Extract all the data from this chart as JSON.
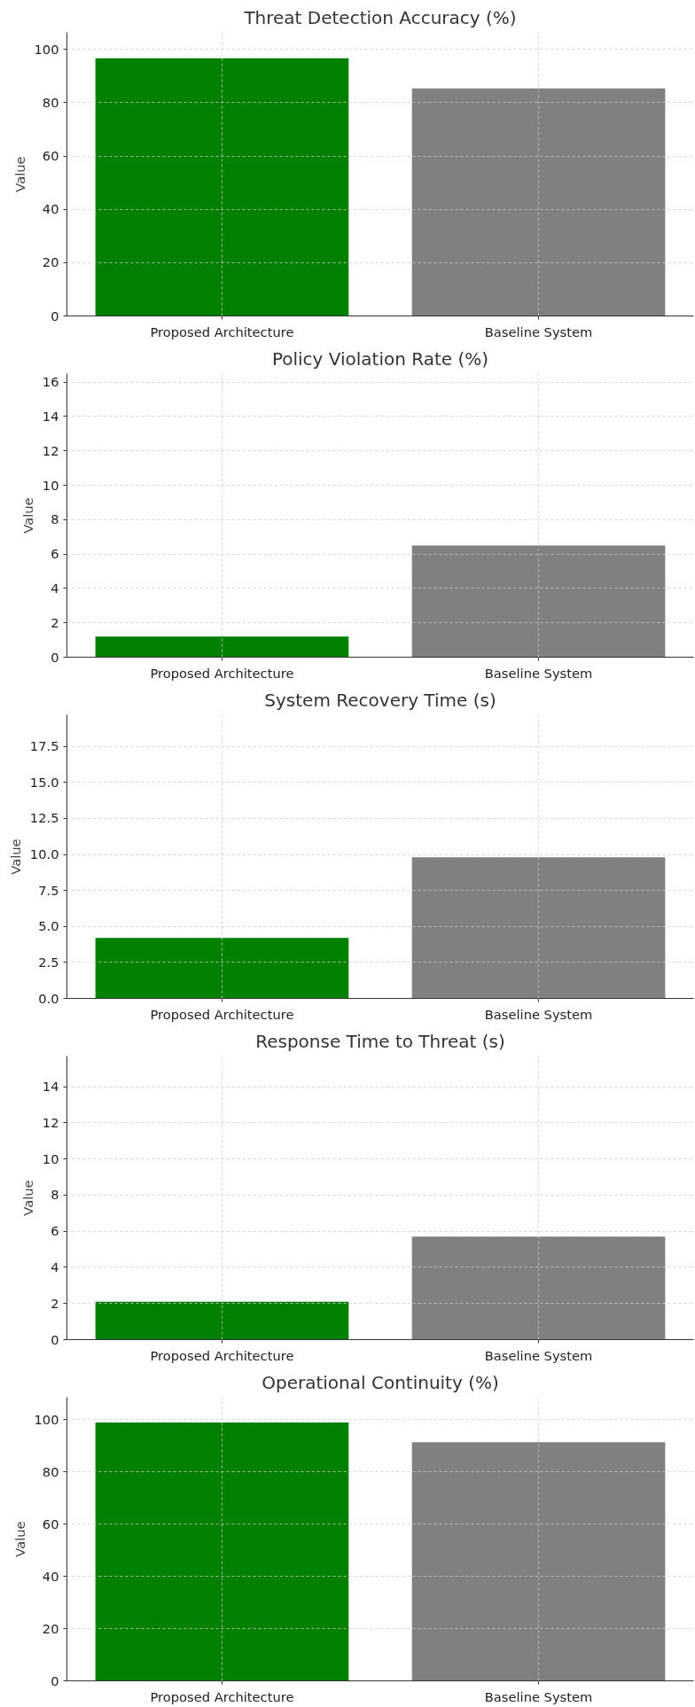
{
  "chart_data": [
    {
      "type": "bar",
      "title": "Threat Detection Accuracy (%)",
      "ylabel": "Value",
      "categories": [
        "Proposed Architecture",
        "Baseline System"
      ],
      "values": [
        96.7,
        85.4
      ],
      "colors": [
        "#008000",
        "#808080"
      ],
      "ylim": [
        0,
        106.4
      ],
      "yticks": [
        0,
        20,
        40,
        60,
        80,
        100
      ],
      "grid": true
    },
    {
      "type": "bar",
      "title": "Policy Violation Rate (%)",
      "ylabel": "Value",
      "categories": [
        "Proposed Architecture",
        "Baseline System"
      ],
      "values": [
        1.2,
        6.5
      ],
      "colors": [
        "#008000",
        "#808080"
      ],
      "ylim": [
        0,
        16.5
      ],
      "yticks": [
        0,
        2,
        4,
        6,
        8,
        10,
        12,
        14,
        16
      ],
      "grid": true
    },
    {
      "type": "bar",
      "title": "System Recovery Time (s)",
      "ylabel": "Value",
      "categories": [
        "Proposed Architecture",
        "Baseline System"
      ],
      "values": [
        4.2,
        9.8
      ],
      "colors": [
        "#008000",
        "#808080"
      ],
      "ylim": [
        0,
        19.7
      ],
      "yticks": [
        {
          "value": 0,
          "label": "0.0"
        },
        2.5,
        {
          "value": 5,
          "label": "5.0"
        },
        7.5,
        {
          "value": 10,
          "label": "10.0"
        },
        12.5,
        {
          "value": 15,
          "label": "15.0"
        },
        17.5
      ],
      "grid": true
    },
    {
      "type": "bar",
      "title": "Response Time to Threat (s)",
      "ylabel": "Value",
      "categories": [
        "Proposed Architecture",
        "Baseline System"
      ],
      "values": [
        2.1,
        5.7
      ],
      "colors": [
        "#008000",
        "#808080"
      ],
      "ylim": [
        0,
        15.7
      ],
      "yticks": [
        0,
        2,
        4,
        6,
        8,
        10,
        12,
        14
      ],
      "grid": true
    },
    {
      "type": "bar",
      "title": "Operational Continuity (%)",
      "ylabel": "Value",
      "categories": [
        "Proposed Architecture",
        "Baseline System"
      ],
      "values": [
        98.8,
        91.3
      ],
      "colors": [
        "#008000",
        "#808080"
      ],
      "ylim": [
        0,
        108.5
      ],
      "yticks": [
        0,
        20,
        40,
        60,
        80,
        100
      ],
      "grid": true
    }
  ]
}
